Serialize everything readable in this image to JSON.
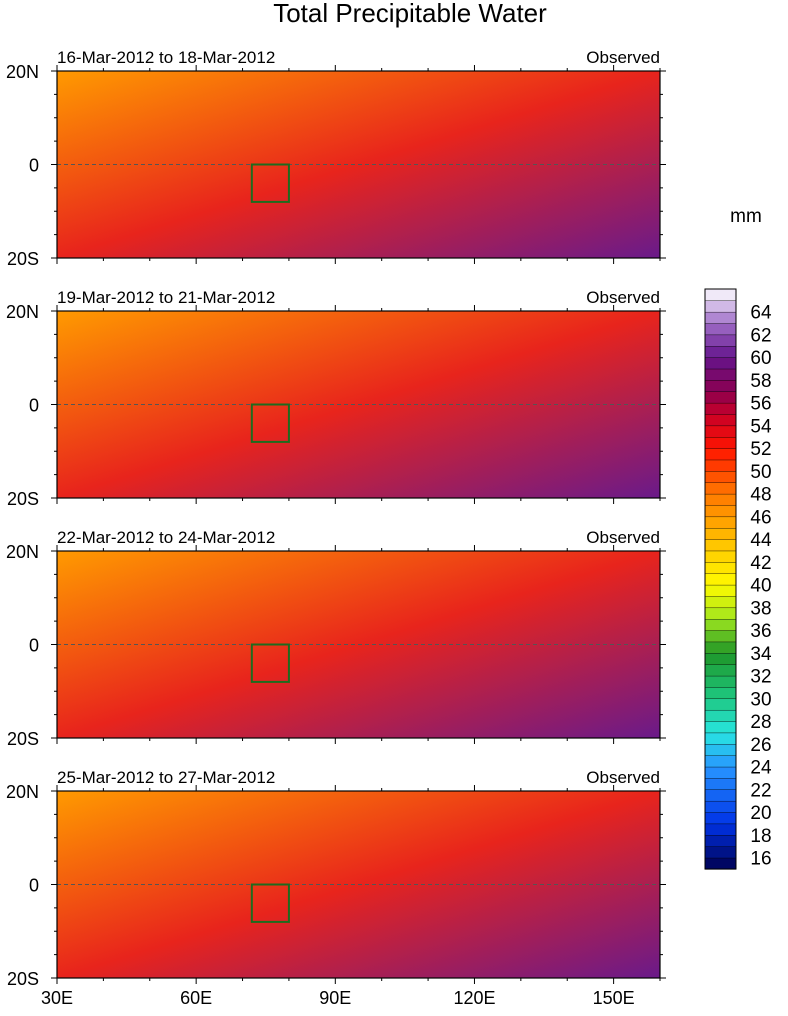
{
  "chart_data": {
    "type": "heatmap",
    "title": "Total Precipitable Water",
    "colorbar": {
      "units": "mm",
      "min": 15,
      "max": 66,
      "step": 1,
      "tick_labels": [
        "16",
        "18",
        "20",
        "22",
        "24",
        "26",
        "28",
        "30",
        "32",
        "34",
        "36",
        "38",
        "40",
        "42",
        "44",
        "46",
        "48",
        "50",
        "52",
        "54",
        "56",
        "58",
        "60",
        "62",
        "64"
      ],
      "tick_values": [
        16,
        18,
        20,
        22,
        24,
        26,
        28,
        30,
        32,
        34,
        36,
        38,
        40,
        42,
        44,
        46,
        48,
        50,
        52,
        54,
        56,
        58,
        60,
        62,
        64
      ]
    },
    "x_axis": {
      "range": [
        30,
        160
      ],
      "tick_values": [
        30,
        60,
        90,
        120,
        150
      ],
      "tick_labels": [
        "30E",
        "60E",
        "90E",
        "120E",
        "150E"
      ]
    },
    "y_axis": {
      "range": [
        -20,
        20
      ],
      "tick_values": [
        20,
        0,
        -20
      ],
      "tick_labels": [
        "20N",
        "0",
        "20S"
      ]
    },
    "box_region": {
      "lon": [
        72,
        80
      ],
      "lat": [
        -8,
        0
      ]
    },
    "panels": [
      {
        "period": "16-Mar-2012 to 18-Mar-2012",
        "label": "Observed"
      },
      {
        "period": "19-Mar-2012 to 21-Mar-2012",
        "label": "Observed"
      },
      {
        "period": "22-Mar-2012 to 24-Mar-2012",
        "label": "Observed"
      },
      {
        "period": "25-Mar-2012 to 27-Mar-2012",
        "label": "Observed"
      }
    ]
  }
}
